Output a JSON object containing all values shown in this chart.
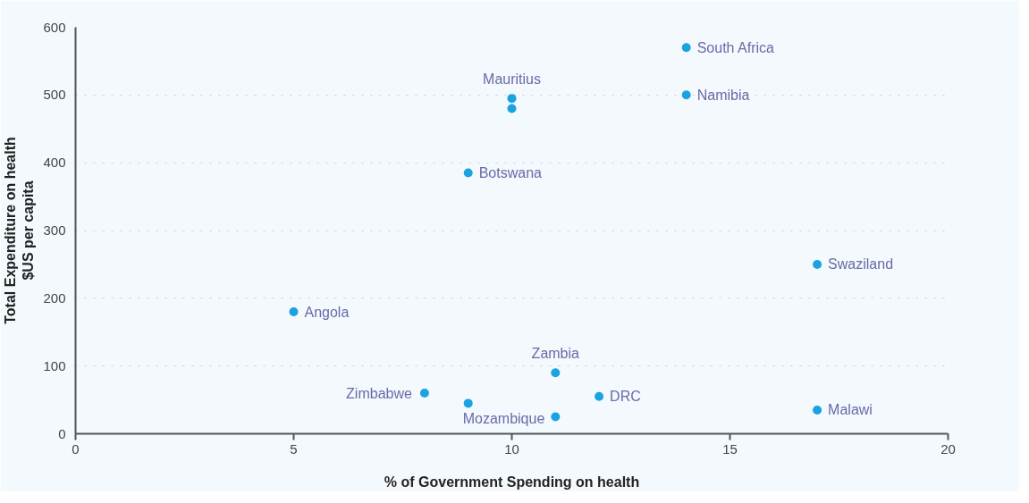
{
  "chart_data": {
    "type": "scatter",
    "xlabel": "% of Government Spending on health",
    "ylabel": "Total Expenditure on health\n$US per capita",
    "x": [
      14,
      14,
      10,
      10,
      9,
      17,
      5,
      11,
      8,
      9,
      12,
      17,
      11
    ],
    "series": [
      {
        "color": "#1aa3e0",
        "values": [
          570,
          500,
          495,
          480,
          385,
          250,
          180,
          90,
          60,
          45,
          55,
          35,
          25
        ]
      }
    ],
    "xlim": [
      0,
      20
    ],
    "ylim": [
      0,
      600
    ],
    "xticks": [
      0,
      5,
      10,
      15,
      20
    ],
    "yticks": [
      0,
      100,
      200,
      300,
      400,
      500,
      600
    ],
    "grid": "y",
    "marker": "circle",
    "annotations": [
      {
        "text": "South Africa",
        "x": 14,
        "y": 570
      },
      {
        "text": "Namibia",
        "x": 14,
        "y": 500
      },
      {
        "text": "Mauritius",
        "x": 10,
        "y": 495
      },
      {
        "text": "Botswana",
        "x": 9,
        "y": 385
      },
      {
        "text": "Swaziland",
        "x": 17,
        "y": 250
      },
      {
        "text": "Angola",
        "x": 5,
        "y": 180
      },
      {
        "text": "Zambia",
        "x": 11,
        "y": 90
      },
      {
        "text": "Zimbabwe",
        "x": 8,
        "y": 60
      },
      {
        "text": "DRC",
        "x": 12,
        "y": 55
      },
      {
        "text": "Malawi",
        "x": 17,
        "y": 35
      },
      {
        "text": "Mozambique",
        "x": 11,
        "y": 25
      }
    ]
  }
}
